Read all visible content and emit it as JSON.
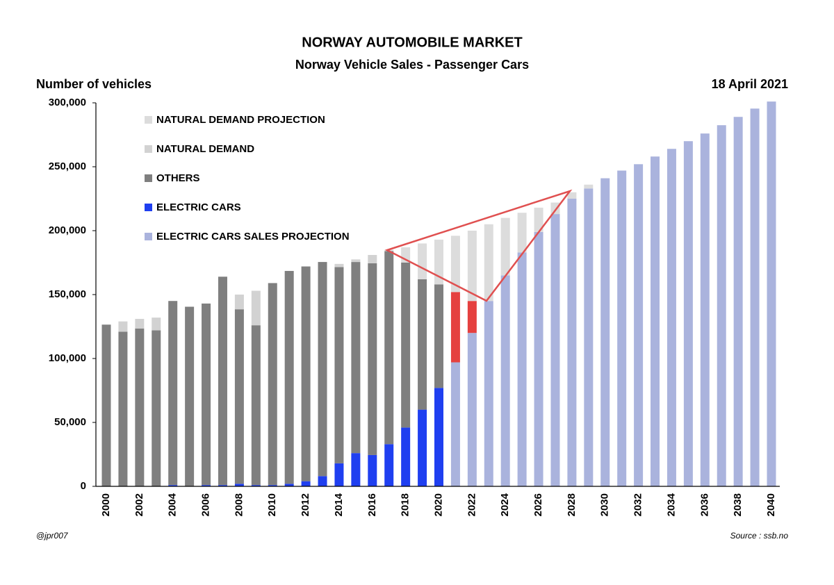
{
  "chart_data": {
    "type": "stacked_bar",
    "title": "NORWAY AUTOMOBILE MARKET",
    "subtitle": "Norway Vehicle Sales - Passenger Cars",
    "y_label": "Number of vehicles",
    "date": "18 April 2021",
    "date_color": "#e03c3c",
    "credit": "@jpr007",
    "source": "Source : ssb.no",
    "categories": [
      "2000",
      null,
      "2002",
      null,
      "2004",
      null,
      "2006",
      null,
      "2008",
      null,
      "2010",
      null,
      "2012",
      null,
      "2014",
      null,
      "2016",
      null,
      "2018",
      null,
      "2020",
      null,
      "2022",
      null,
      "2024",
      null,
      "2026",
      null,
      "2028",
      null,
      "2030",
      null,
      "2032",
      null,
      "2034",
      null,
      "2036",
      null,
      "2038",
      null,
      "2040"
    ],
    "ylim": [
      0,
      300000
    ],
    "yticks": [
      {
        "value": 0,
        "label": "0"
      },
      {
        "value": 50000,
        "label": "50,000"
      },
      {
        "value": 100000,
        "label": "100,000"
      },
      {
        "value": 150000,
        "label": "150,000"
      },
      {
        "value": 200000,
        "label": "200,000"
      },
      {
        "value": 250000,
        "label": "250,000"
      },
      {
        "value": 300000,
        "label": "300,000"
      }
    ],
    "grid": false,
    "legend": "upper left",
    "series": [
      {
        "name": "NATURAL DEMAND PROJECTION",
        "color": "#dcdcdc",
        "values": [
          null,
          null,
          null,
          null,
          null,
          null,
          null,
          null,
          null,
          null,
          null,
          null,
          null,
          null,
          null,
          null,
          null,
          1000,
          12000,
          28000,
          35000,
          44000,
          55000,
          60000,
          45000,
          31000,
          19000,
          9000,
          5000,
          3000,
          null,
          null,
          null,
          null,
          null,
          null,
          null,
          null,
          null,
          null,
          null
        ]
      },
      {
        "name": "NATURAL DEMAND",
        "color": "#d2d2d2",
        "values": [
          null,
          8000,
          7500,
          10000,
          null,
          null,
          null,
          null,
          11500,
          27000,
          null,
          null,
          null,
          null,
          2500,
          2000,
          6500,
          null,
          null,
          null,
          null,
          null,
          null,
          null,
          null,
          null,
          null,
          null,
          null,
          null,
          null,
          null,
          null,
          null,
          null,
          null,
          null,
          null,
          null,
          null,
          null
        ]
      },
      {
        "name": "OTHERS",
        "color": "#7f7f7f",
        "values": [
          126500,
          121000,
          123500,
          122000,
          144000,
          140500,
          142000,
          163000,
          136500,
          125000,
          158000,
          166500,
          168000,
          167500,
          153500,
          149500,
          150000,
          151000,
          129000,
          102000,
          81000,
          null,
          null,
          null,
          null,
          null,
          null,
          null,
          null,
          null,
          null,
          null,
          null,
          null,
          null,
          null,
          null,
          null,
          null,
          null,
          null
        ]
      },
      {
        "name": "ELECTRIC CARS",
        "color": "#1f3ff0",
        "values": [
          null,
          null,
          null,
          null,
          1000,
          null,
          1000,
          1000,
          2000,
          1000,
          1000,
          2000,
          4000,
          8000,
          18000,
          26000,
          24500,
          33000,
          46000,
          60000,
          77000,
          null,
          null,
          null,
          null,
          null,
          null,
          null,
          null,
          null,
          null,
          null,
          null,
          null,
          null,
          null,
          null,
          null,
          null,
          null,
          null
        ]
      },
      {
        "name": "ELECTRIC CARS SALES PROJECTION",
        "color": "#aab3dd",
        "values": [
          null,
          null,
          null,
          null,
          null,
          null,
          null,
          null,
          null,
          null,
          null,
          null,
          null,
          null,
          null,
          null,
          null,
          null,
          null,
          null,
          null,
          97000,
          120000,
          145000,
          165000,
          183000,
          199000,
          213000,
          225000,
          233000,
          241000,
          247000,
          252000,
          258000,
          264000,
          270000,
          276000,
          282500,
          289000,
          295500,
          301000
        ]
      },
      {
        "color": "#e5403f",
        "values": [
          null,
          null,
          null,
          null,
          null,
          null,
          null,
          null,
          null,
          null,
          null,
          null,
          null,
          null,
          null,
          null,
          null,
          null,
          null,
          null,
          null,
          55000,
          25000,
          null,
          null,
          null,
          null,
          null,
          null,
          null,
          null,
          null,
          null,
          null,
          null,
          null,
          null,
          null,
          null,
          null,
          null
        ]
      }
    ]
  }
}
